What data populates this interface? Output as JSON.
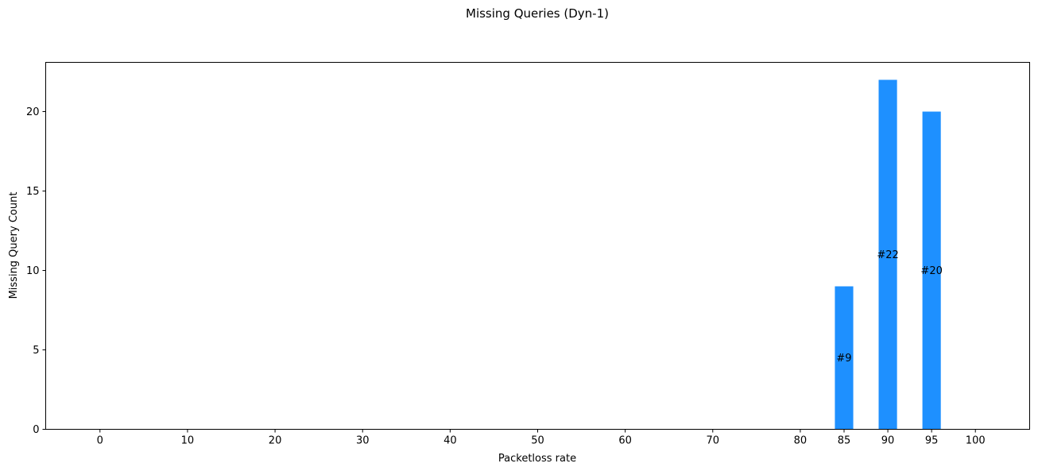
{
  "chart_data": {
    "type": "bar",
    "title": "Missing Queries (Dyn-1)",
    "xlabel": "Packetloss rate",
    "ylabel": "Missing Query Count",
    "categories": [
      "0",
      "10",
      "20",
      "30",
      "40",
      "50",
      "60",
      "70",
      "80",
      "85",
      "90",
      "95",
      "100"
    ],
    "values": [
      0,
      0,
      0,
      0,
      0,
      0,
      0,
      0,
      0,
      9,
      22,
      20,
      0
    ],
    "bar_labels": [
      "",
      "",
      "",
      "",
      "",
      "",
      "",
      "",
      "",
      "#9",
      "#22",
      "#20",
      ""
    ],
    "yticks": [
      "0",
      "5",
      "10",
      "15",
      "20"
    ],
    "ylim": [
      0,
      23.1
    ],
    "grid": false,
    "bar_color": "#1e90ff"
  }
}
